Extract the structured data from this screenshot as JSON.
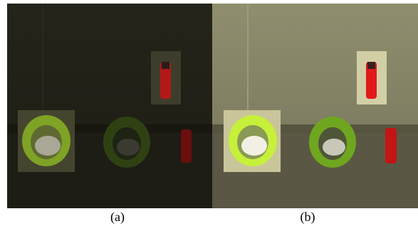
{
  "captions": [
    "(a)",
    "(b)"
  ]
}
